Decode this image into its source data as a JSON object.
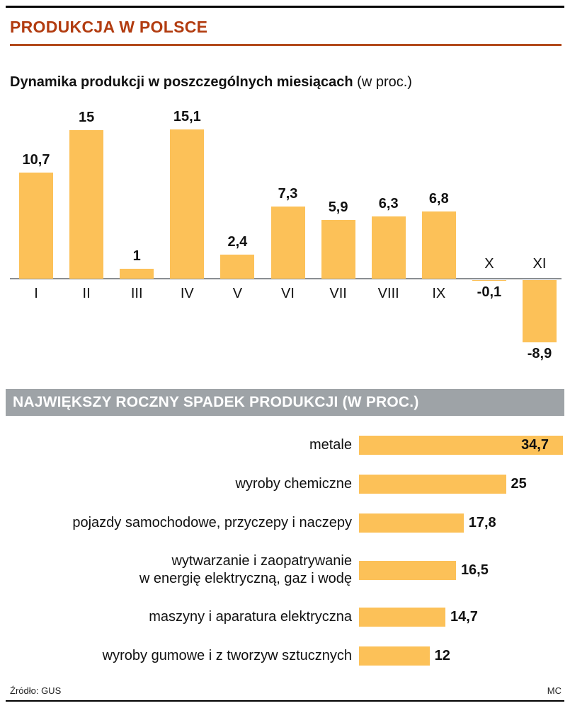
{
  "page": {
    "title": "PRODUKCJA W POLSCE",
    "source": "Źródło: GUS",
    "credit": "MC"
  },
  "section1": {
    "title": "Dynamika produkcji w poszczególnych miesiącach",
    "title_suffix": " (w proc.)"
  },
  "section2": {
    "title": "NAJWIĘKSZY ROCZNY SPADEK PRODUKCJI (W PROC.)"
  },
  "colors": {
    "accent": "#b23c10",
    "bar": "#fcc158",
    "banner": "#9ea3a7"
  },
  "chart_data": [
    {
      "type": "bar",
      "orientation": "vertical",
      "title": "Dynamika produkcji w poszczególnych miesiącach (w proc.)",
      "categories": [
        "I",
        "II",
        "III",
        "IV",
        "V",
        "VI",
        "VII",
        "VIII",
        "IX",
        "X",
        "XI"
      ],
      "values": [
        10.7,
        15,
        1,
        15.1,
        2.4,
        7.3,
        5.9,
        6.3,
        6.8,
        -0.1,
        -8.9
      ],
      "value_labels": [
        "10,7",
        "15",
        "1",
        "15,1",
        "2,4",
        "7,3",
        "5,9",
        "6,3",
        "6,8",
        "-0,1",
        "-8,9"
      ],
      "xlabel": "",
      "ylabel": "",
      "ylim": [
        -10,
        16
      ],
      "grid": false,
      "legend": false
    },
    {
      "type": "bar",
      "orientation": "horizontal",
      "title": "NAJWIĘKSZY ROCZNY SPADEK PRODUKCJI (W PROC.)",
      "categories": [
        "metale",
        "wyroby chemiczne",
        "pojazdy samochodowe, przyczepy i naczepy",
        "wytwarzanie i zaopatrywanie\nw energię elektryczną, gaz i wodę",
        "maszyny i aparatura elektryczna",
        "wyroby gumowe i z tworzyw sztucznych"
      ],
      "values": [
        34.7,
        25,
        17.8,
        16.5,
        14.7,
        12
      ],
      "value_labels": [
        "34,7",
        "25",
        "17,8",
        "16,5",
        "14,7",
        "12"
      ],
      "xlim": [
        0,
        36
      ],
      "grid": false,
      "legend": false
    }
  ]
}
